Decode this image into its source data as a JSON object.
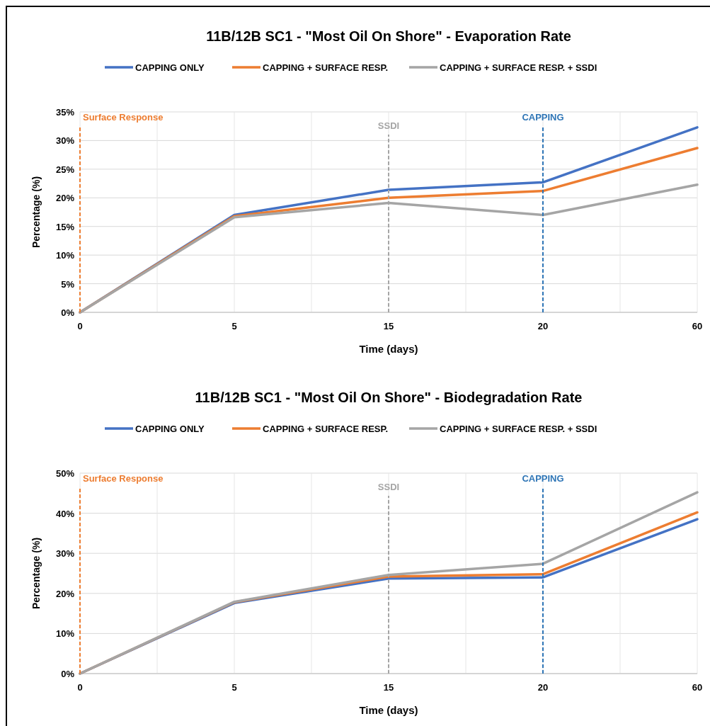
{
  "chart_data": [
    {
      "type": "line",
      "title": "11B/12B SC1 - \"Most Oil On Shore\" - Evaporation Rate",
      "xlabel": "Time (days)",
      "ylabel": "Percentage (%)",
      "categories": [
        "0",
        "5",
        "15",
        "20",
        "60"
      ],
      "ylim": [
        0,
        35
      ],
      "yticks": [
        {
          "value": 0,
          "label": "0%"
        },
        {
          "value": 5,
          "label": "5%"
        },
        {
          "value": 10,
          "label": "10%"
        },
        {
          "value": 15,
          "label": "15%"
        },
        {
          "value": 20,
          "label": "20%"
        },
        {
          "value": 25,
          "label": "25%"
        },
        {
          "value": 30,
          "label": "30%"
        },
        {
          "value": 35,
          "label": "35%"
        }
      ],
      "grid": true,
      "legend": "top",
      "line_style": "solid",
      "series": [
        {
          "name": "CAPPING ONLY",
          "color": "#4472c4",
          "values": [
            0,
            17.0,
            21.4,
            22.7,
            32.3
          ]
        },
        {
          "name": "CAPPING + SURFACE RESP.",
          "color": "#ed7d31",
          "values": [
            0,
            16.8,
            20.0,
            21.2,
            28.7
          ]
        },
        {
          "name": "CAPPING + SURFACE RESP. + SSDI",
          "color": "#a5a5a5",
          "values": [
            0,
            16.6,
            19.1,
            17.0,
            22.3
          ]
        }
      ],
      "ref_lines": [
        {
          "axis": "x",
          "value": "0",
          "label": "Surface Response",
          "color": "#ed7d31",
          "line_style": "dashed"
        },
        {
          "axis": "x",
          "value": "15",
          "label": "SSDI",
          "color": "#a5a5a5",
          "line_style": "dashed"
        },
        {
          "axis": "x",
          "value": "20",
          "label": "CAPPING",
          "color": "#2e75b6",
          "line_style": "dashed"
        }
      ]
    },
    {
      "type": "line",
      "title": "11B/12B SC1 - \"Most Oil On Shore\" - Biodegradation Rate",
      "xlabel": "Time (days)",
      "ylabel": "Percentage (%)",
      "categories": [
        "0",
        "5",
        "15",
        "20",
        "60"
      ],
      "ylim": [
        0,
        50
      ],
      "yticks": [
        {
          "value": 0,
          "label": "0%"
        },
        {
          "value": 10,
          "label": "10%"
        },
        {
          "value": 20,
          "label": "20%"
        },
        {
          "value": 30,
          "label": "30%"
        },
        {
          "value": 40,
          "label": "40%"
        },
        {
          "value": 50,
          "label": "50%"
        }
      ],
      "grid": true,
      "legend": "top",
      "line_style": "solid",
      "series": [
        {
          "name": "CAPPING ONLY",
          "color": "#4472c4",
          "values": [
            0,
            17.6,
            23.7,
            24.0,
            38.5
          ]
        },
        {
          "name": "CAPPING + SURFACE RESP.",
          "color": "#ed7d31",
          "values": [
            0,
            17.8,
            24.2,
            24.8,
            40.2
          ]
        },
        {
          "name": "CAPPING + SURFACE RESP. + SSDI",
          "color": "#a5a5a5",
          "values": [
            0,
            17.9,
            24.6,
            27.4,
            45.2
          ]
        }
      ],
      "ref_lines": [
        {
          "axis": "x",
          "value": "0",
          "label": "Surface Response",
          "color": "#ed7d31",
          "line_style": "dashed"
        },
        {
          "axis": "x",
          "value": "15",
          "label": "SSDI",
          "color": "#a5a5a5",
          "line_style": "dashed"
        },
        {
          "axis": "x",
          "value": "20",
          "label": "CAPPING",
          "color": "#2e75b6",
          "line_style": "dashed"
        }
      ]
    }
  ]
}
